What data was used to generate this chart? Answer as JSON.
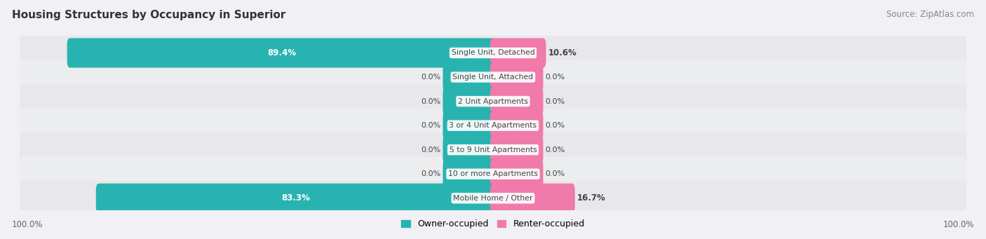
{
  "title": "Housing Structures by Occupancy in Superior",
  "source": "Source: ZipAtlas.com",
  "categories": [
    "Single Unit, Detached",
    "Single Unit, Attached",
    "2 Unit Apartments",
    "3 or 4 Unit Apartments",
    "5 to 9 Unit Apartments",
    "10 or more Apartments",
    "Mobile Home / Other"
  ],
  "owner_pct": [
    89.4,
    0.0,
    0.0,
    0.0,
    0.0,
    0.0,
    83.3
  ],
  "renter_pct": [
    10.6,
    0.0,
    0.0,
    0.0,
    0.0,
    0.0,
    16.7
  ],
  "owner_color": "#29b3b0",
  "renter_color": "#f07aaa",
  "row_bg_colors": [
    "#e8e8ec",
    "#ecedef"
  ],
  "fig_bg": "#f0f0f5",
  "text_dark": "#444444",
  "text_white": "#ffffff",
  "axis_label_left": "100.0%",
  "axis_label_right": "100.0%",
  "legend_owner": "Owner-occupied",
  "legend_renter": "Renter-occupied",
  "zero_bar_width": 5.0,
  "figsize": [
    14.06,
    3.41
  ],
  "dpi": 100
}
